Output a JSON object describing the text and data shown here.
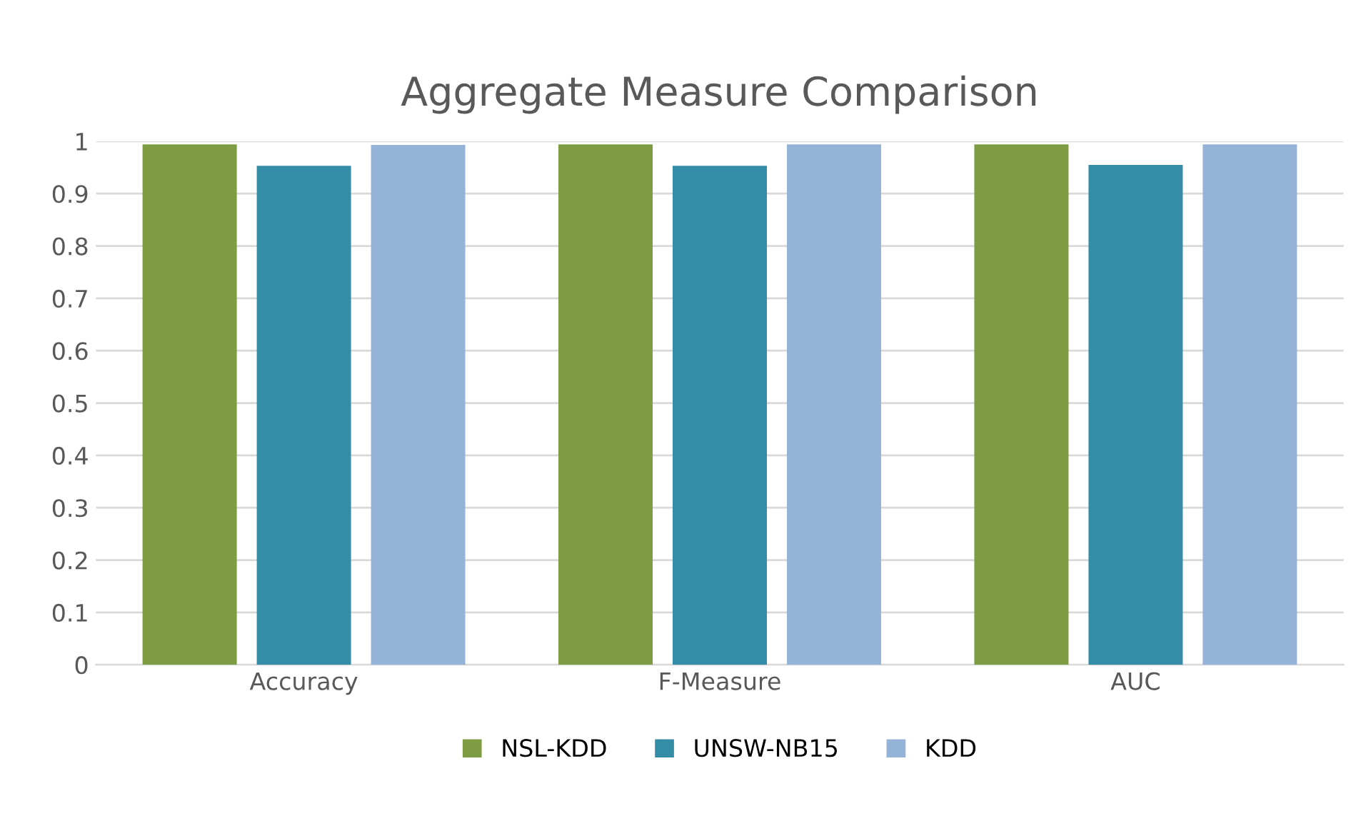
{
  "chart_data": {
    "type": "bar",
    "title": "Aggregate Measure Comparison",
    "categories": [
      "Accuracy",
      "F-Measure",
      "AUC"
    ],
    "series": [
      {
        "name": "NSL-KDD",
        "color": "#7e9c41",
        "values": [
          0.994,
          0.994,
          0.994
        ]
      },
      {
        "name": "UNSW-NB15",
        "color": "#358ca6",
        "values": [
          0.953,
          0.953,
          0.955
        ]
      },
      {
        "name": "KDD",
        "color": "#95b3d7",
        "values": [
          0.993,
          0.994,
          0.994
        ]
      }
    ],
    "ylim": [
      0,
      1
    ],
    "yticks": [
      0,
      0.1,
      0.2,
      0.3,
      0.4,
      0.5,
      0.6,
      0.7,
      0.8,
      0.9,
      1
    ],
    "grid": "y",
    "legend": "bottom"
  }
}
